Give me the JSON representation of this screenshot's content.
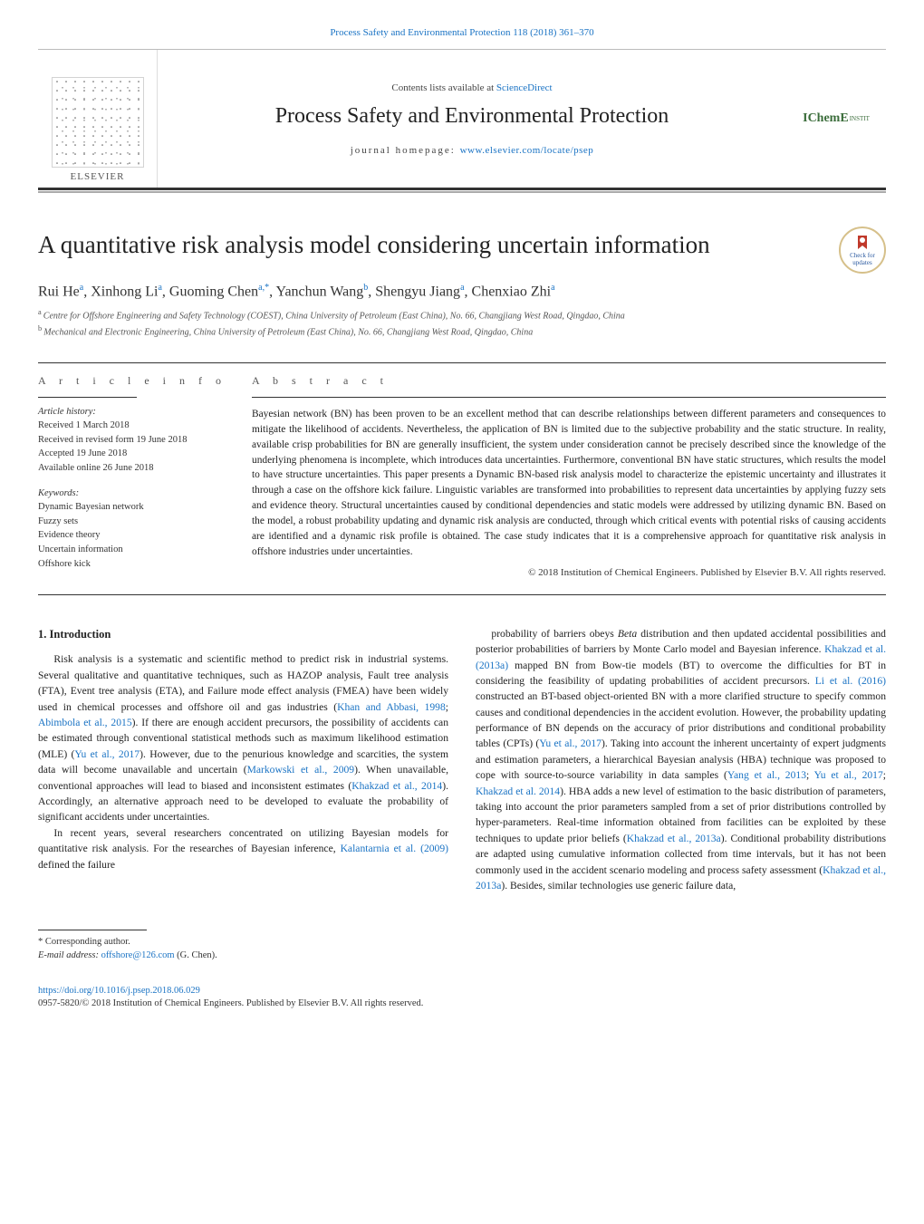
{
  "journal_ref": "Process Safety and Environmental Protection 118 (2018) 361–370",
  "header": {
    "publisher": "ELSEVIER",
    "contents_text": "Contents lists available at ",
    "contents_link": "ScienceDirect",
    "journal_title": "Process Safety and Environmental Protection",
    "homepage_label": "journal homepage: ",
    "homepage_url": "www.elsevier.com/locate/psep",
    "brand": "IChemE",
    "brand_sub": "INSTIT"
  },
  "badge": {
    "line1": "Check for",
    "line2": "updates"
  },
  "article": {
    "title": "A quantitative risk analysis model considering uncertain information",
    "authors_html_parts": [
      {
        "name": "Rui He",
        "aff": "a"
      },
      {
        "name": "Xinhong Li",
        "aff": "a"
      },
      {
        "name": "Guoming Chen",
        "aff": "a,",
        "star": "*"
      },
      {
        "name": "Yanchun Wang",
        "aff": "b"
      },
      {
        "name": "Shengyu Jiang",
        "aff": "a"
      },
      {
        "name": "Chenxiao Zhi",
        "aff": "a"
      }
    ],
    "affiliations": [
      {
        "marker": "a",
        "text": "Centre for Offshore Engineering and Safety Technology (COEST), China University of Petroleum (East China), No. 66, Changjiang West Road, Qingdao, China"
      },
      {
        "marker": "b",
        "text": "Mechanical and Electronic Engineering, China University of Petroleum (East China), No. 66, Changjiang West Road, Qingdao, China"
      }
    ]
  },
  "article_info": {
    "info_head": "a r t i c l e   i n f o",
    "abstract_head": "a b s t r a c t",
    "history_label": "Article history:",
    "history": [
      "Received 1 March 2018",
      "Received in revised form 19 June 2018",
      "Accepted 19 June 2018",
      "Available online 26 June 2018"
    ],
    "keywords_label": "Keywords:",
    "keywords": [
      "Dynamic Bayesian network",
      "Fuzzy sets",
      "Evidence theory",
      "Uncertain information",
      "Offshore kick"
    ],
    "abstract": "Bayesian network (BN) has been proven to be an excellent method that can describe relationships between different parameters and consequences to mitigate the likelihood of accidents. Nevertheless, the application of BN is limited due to the subjective probability and the static structure. In reality, available crisp probabilities for BN are generally insufficient, the system under consideration cannot be precisely described since the knowledge of the underlying phenomena is incomplete, which introduces data uncertainties. Furthermore, conventional BN have static structures, which results the model to have structure uncertainties. This paper presents a Dynamic BN-based risk analysis model to characterize the epistemic uncertainty and illustrates it through a case on the offshore kick failure. Linguistic variables are transformed into probabilities to represent data uncertainties by applying fuzzy sets and evidence theory. Structural uncertainties caused by conditional dependencies and static models were addressed by utilizing dynamic BN. Based on the model, a robust probability updating and dynamic risk analysis are conducted, through which critical events with potential risks of causing accidents are identified and a dynamic risk profile is obtained. The case study indicates that it is a comprehensive approach for quantitative risk analysis in offshore industries under uncertainties.",
    "copyright": "© 2018 Institution of Chemical Engineers. Published by Elsevier B.V. All rights reserved."
  },
  "intro": {
    "heading": "1.  Introduction",
    "left_paragraphs": [
      "Risk analysis is a systematic and scientific method to predict risk in industrial systems. Several qualitative and quantitative techniques, such as HAZOP analysis, Fault tree analysis (FTA), Event tree analysis (ETA), and Failure mode effect analysis (FMEA) have been widely used in chemical processes and offshore oil and gas industries (|Khan and Abbasi, 1998|; |Abimbola et al., 2015|). If there are enough accident precursors, the possibility of accidents can be estimated through conventional statistical methods such as maximum likelihood estimation (MLE) (|Yu et al., 2017|). However, due to the penurious knowledge and scarcities, the system data will become unavailable and uncertain (|Markowski et al., 2009|). When unavailable, conventional approaches will lead to biased and inconsistent estimates (|Khakzad et al., 2014|). Accordingly, an alternative approach need to be developed to evaluate the probability of significant accidents under uncertainties.",
      "In recent years, several researchers concentrated on utilizing Bayesian models for quantitative risk analysis. For the researches of Bayesian inference, |Kalantarnia et al. (2009)| defined the failure"
    ],
    "right_paragraphs": [
      "probability of barriers obeys Beta distribution and then updated accidental possibilities and posterior probabilities of barriers by Monte Carlo model and Bayesian inference. |Khakzad et al. (2013a)| mapped BN from Bow-tie models (BT) to overcome the difficulties for BT in considering the feasibility of updating probabilities of accident precursors. |Li et al. (2016)| constructed an BT-based object-oriented BN with a more clarified structure to specify common causes and conditional dependencies in the accident evolution. However, the probability updating performance of BN depends on the accuracy of prior distributions and conditional probability tables (CPTs) (|Yu et al., 2017|). Taking into account the inherent uncertainty of expert judgments and estimation parameters, a hierarchical Bayesian analysis (HBA) technique was proposed to cope with source-to-source variability in data samples (|Yang et al., 2013|; |Yu et al., 2017|; |Khakzad et al. 2014|). HBA adds a new level of estimation to the basic distribution of parameters, taking into account the prior parameters sampled from a set of prior distributions controlled by hyper-parameters. Real-time information obtained from facilities can be exploited by these techniques to update prior beliefs (|Khakzad et al., 2013a|). Conditional probability distributions are adapted using cumulative information collected from time intervals, but it has not been commonly used in the accident scenario modeling and process safety assessment (|Khakzad et al., 2013a|). Besides, similar technologies use generic failure data,"
    ]
  },
  "footer": {
    "corr_label": "* Corresponding author.",
    "email_label": "E-mail address: ",
    "email": "offshore@126.com",
    "email_tail": " (G. Chen).",
    "doi": "https://doi.org/10.1016/j.psep.2018.06.029",
    "issn_line": "0957-5820/© 2018 Institution of Chemical Engineers. Published by Elsevier B.V. All rights reserved."
  },
  "colors": {
    "link": "#1a73c4",
    "text": "#222222",
    "rule": "#333333",
    "brand": "#3b6d3b"
  }
}
